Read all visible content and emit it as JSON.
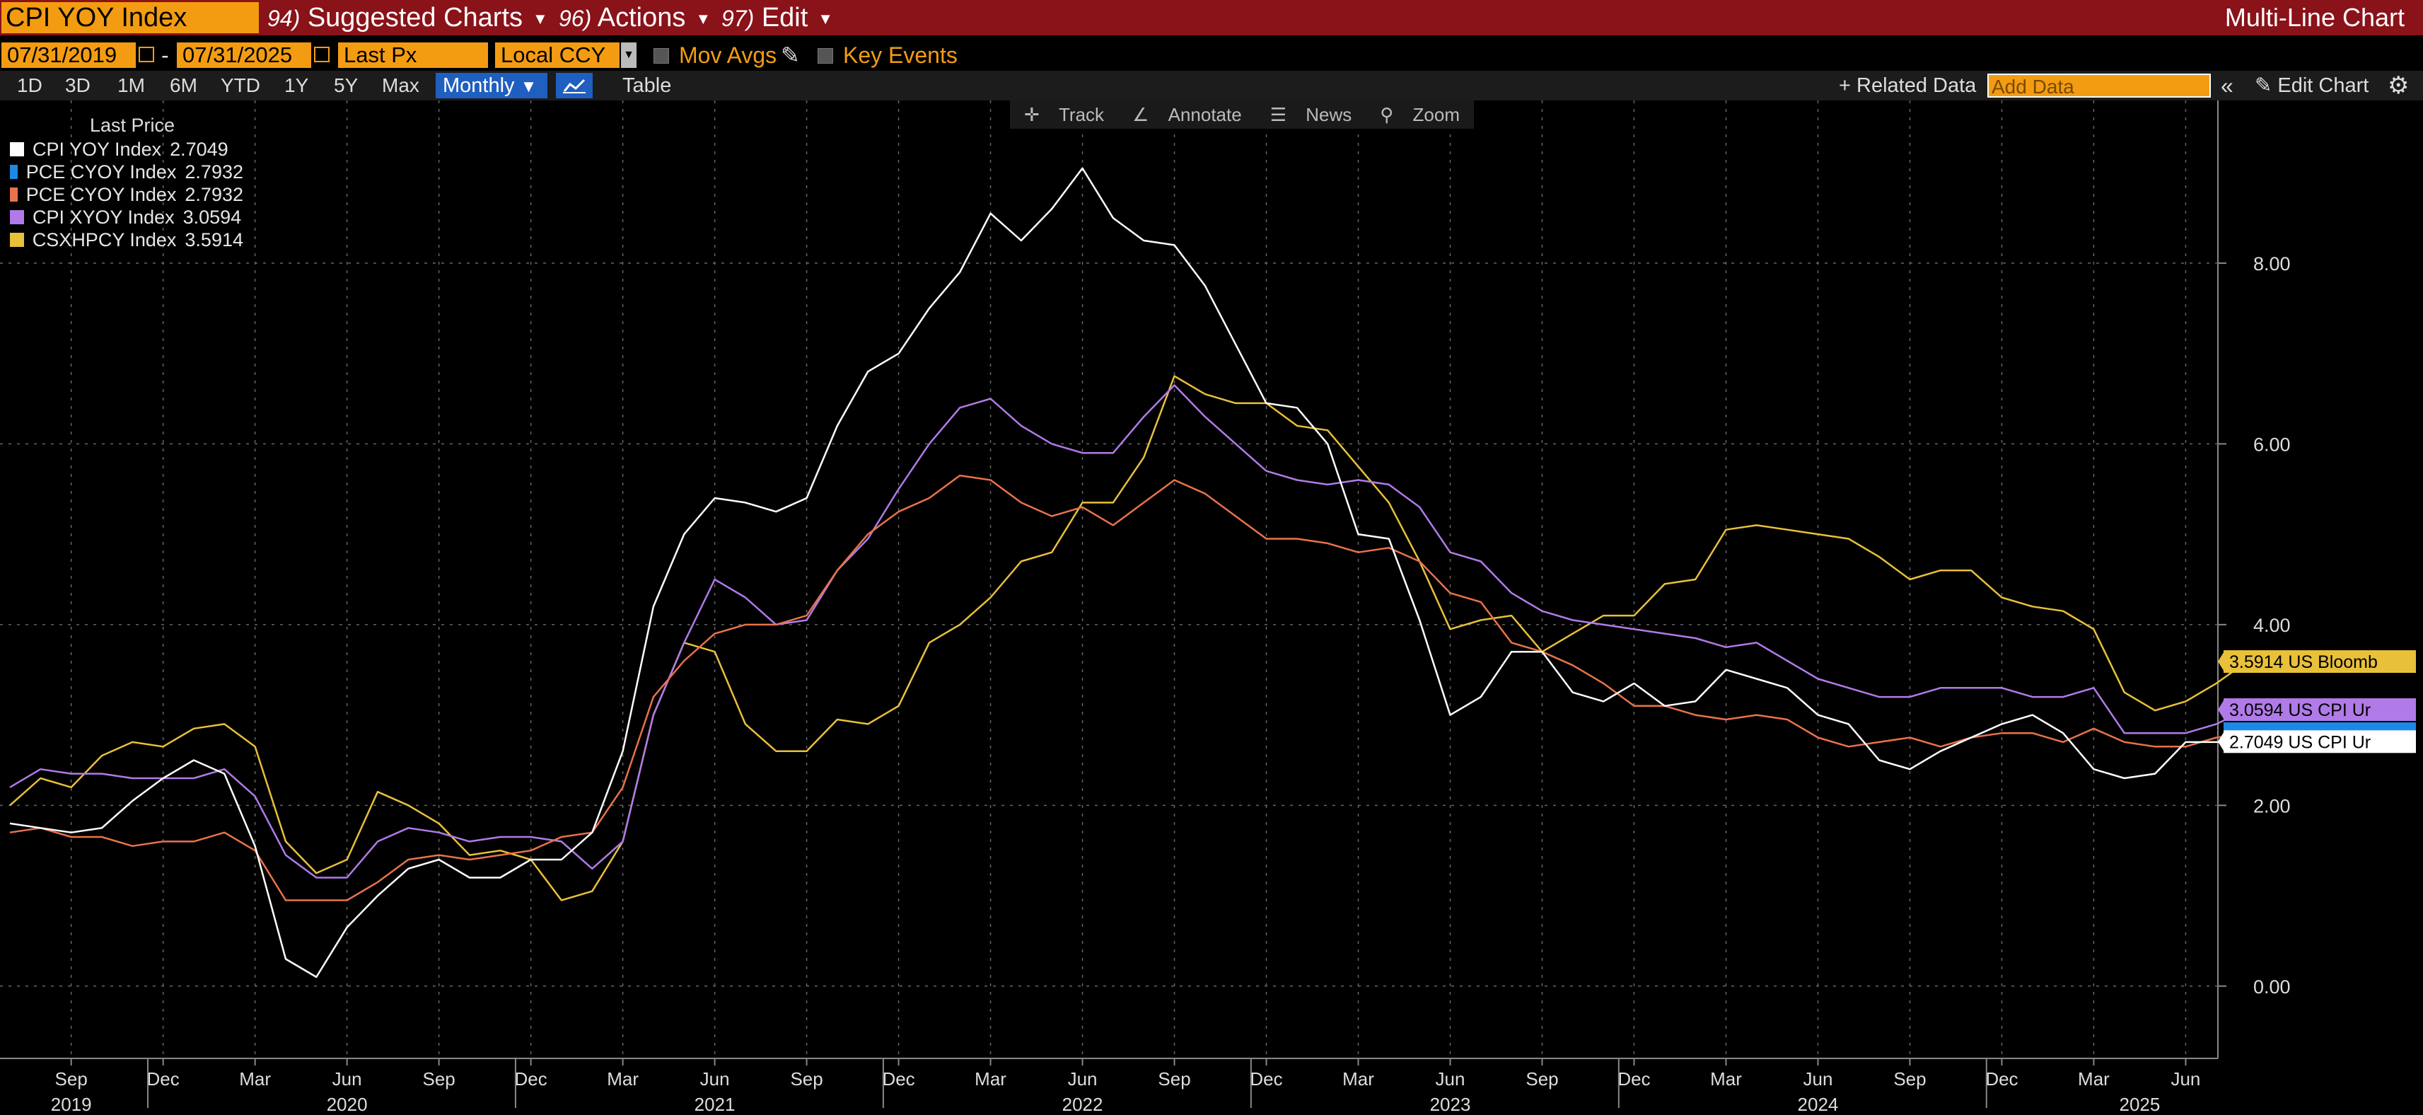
{
  "header": {
    "ticker": "CPI YOY Index",
    "menus": [
      {
        "num": "94)",
        "label": "Suggested Charts"
      },
      {
        "num": "96)",
        "label": "Actions"
      },
      {
        "num": "97)",
        "label": "Edit"
      }
    ],
    "chart_type": "Multi-Line Chart"
  },
  "toolbar": {
    "start_date": "07/31/2019",
    "date_separator": "-",
    "end_date": "07/31/2025",
    "price_field": "Last Px",
    "currency": "Local CCY",
    "mov_avgs": "Mov Avgs",
    "key_events": "Key Events"
  },
  "periods": [
    "1D",
    "3D",
    "1M",
    "6M",
    "YTD",
    "1Y",
    "5Y",
    "Max"
  ],
  "frequency": "Monthly",
  "table_tab": "Table",
  "related_data": "Related Data",
  "add_data_placeholder": "Add Data",
  "edit_chart": "Edit Chart",
  "chart_tools": [
    "Track",
    "Annotate",
    "News",
    "Zoom"
  ],
  "legend": {
    "header": "Last Price",
    "items": [
      {
        "name": "CPI YOY Index",
        "value": "2.7049",
        "color": "#ffffff"
      },
      {
        "name": "PCE CYOY Index",
        "value": "2.7932",
        "color": "#1e88e5"
      },
      {
        "name": "PCE CYOY Index",
        "value": "2.7932",
        "color": "#e8734a"
      },
      {
        "name": "CPI XYOY Index",
        "value": "3.0594",
        "color": "#b07be8"
      },
      {
        "name": "CSXHPCY Index",
        "value": "3.5914",
        "color": "#e8c03a"
      }
    ]
  },
  "chart_data": {
    "type": "line",
    "x_start": "2019-07",
    "x_end": "2025-07",
    "ylim": [
      -0.8,
      9.8
    ],
    "y_ticks": [
      "8.00",
      "6.00",
      "4.00",
      "2.00",
      "0.00"
    ],
    "x_month_ticks": [
      "Sep",
      "Dec",
      "Mar",
      "Jun",
      "Sep",
      "Dec",
      "Mar",
      "Jun",
      "Sep",
      "Dec",
      "Mar",
      "Jun",
      "Sep",
      "Dec",
      "Mar",
      "Jun",
      "Sep",
      "Dec",
      "Mar",
      "Jun",
      "Sep",
      "Dec",
      "Mar",
      "Jun"
    ],
    "x_year_labels": [
      "2019",
      "2020",
      "2021",
      "2022",
      "2023",
      "2024",
      "2025"
    ],
    "series": [
      {
        "name": "CSXHPCY Index",
        "color": "#e8c03a",
        "values": [
          2.0,
          2.3,
          2.2,
          2.55,
          2.7,
          2.65,
          2.85,
          2.9,
          2.65,
          1.6,
          1.25,
          1.4,
          2.15,
          2.0,
          1.8,
          1.45,
          1.5,
          1.4,
          0.95,
          1.05,
          1.6,
          3.0,
          3.8,
          3.7,
          2.9,
          2.6,
          2.6,
          2.95,
          2.9,
          3.1,
          3.8,
          4.0,
          4.3,
          4.7,
          4.8,
          5.35,
          5.35,
          5.85,
          6.75,
          6.55,
          6.45,
          6.45,
          6.2,
          6.15,
          5.75,
          5.35,
          4.7,
          3.95,
          4.05,
          4.1,
          3.7,
          3.9,
          4.1,
          4.1,
          4.45,
          4.5,
          5.05,
          5.1,
          5.05,
          5.0,
          4.95,
          4.75,
          4.5,
          4.6,
          4.6,
          4.3,
          4.2,
          4.15,
          3.95,
          3.25,
          3.05,
          3.15,
          3.35,
          3.59
        ]
      },
      {
        "name": "CPI XYOY Index",
        "color": "#b07be8",
        "values": [
          2.2,
          2.4,
          2.35,
          2.35,
          2.3,
          2.3,
          2.3,
          2.4,
          2.1,
          1.45,
          1.2,
          1.2,
          1.6,
          1.75,
          1.7,
          1.6,
          1.65,
          1.65,
          1.6,
          1.3,
          1.6,
          3.0,
          3.8,
          4.5,
          4.3,
          4.0,
          4.05,
          4.6,
          4.95,
          5.5,
          6.0,
          6.4,
          6.5,
          6.2,
          6.0,
          5.9,
          5.9,
          6.3,
          6.65,
          6.3,
          6.0,
          5.7,
          5.6,
          5.55,
          5.6,
          5.55,
          5.3,
          4.8,
          4.7,
          4.35,
          4.15,
          4.05,
          4.0,
          3.95,
          3.9,
          3.85,
          3.75,
          3.8,
          3.6,
          3.4,
          3.3,
          3.2,
          3.2,
          3.3,
          3.3,
          3.3,
          3.2,
          3.2,
          3.3,
          2.8,
          2.8,
          2.8,
          2.9,
          3.06
        ]
      },
      {
        "name": "PCE CYOY Index",
        "color": "#e8734a",
        "values": [
          1.7,
          1.75,
          1.65,
          1.65,
          1.55,
          1.6,
          1.6,
          1.7,
          1.5,
          0.95,
          0.95,
          0.95,
          1.15,
          1.4,
          1.45,
          1.4,
          1.45,
          1.5,
          1.65,
          1.7,
          2.2,
          3.2,
          3.6,
          3.9,
          4.0,
          4.0,
          4.1,
          4.6,
          5.0,
          5.25,
          5.4,
          5.65,
          5.6,
          5.35,
          5.2,
          5.3,
          5.1,
          5.35,
          5.6,
          5.45,
          5.2,
          4.95,
          4.95,
          4.9,
          4.8,
          4.85,
          4.7,
          4.35,
          4.25,
          3.8,
          3.7,
          3.55,
          3.35,
          3.1,
          3.1,
          3.0,
          2.95,
          3.0,
          2.95,
          2.75,
          2.65,
          2.7,
          2.75,
          2.65,
          2.75,
          2.8,
          2.8,
          2.7,
          2.85,
          2.7,
          2.65,
          2.65,
          2.75,
          2.79
        ]
      },
      {
        "name": "CPI YOY Index",
        "color": "#ffffff",
        "values": [
          1.8,
          1.75,
          1.7,
          1.75,
          2.05,
          2.3,
          2.5,
          2.35,
          1.55,
          0.3,
          0.1,
          0.65,
          1.0,
          1.3,
          1.4,
          1.2,
          1.2,
          1.4,
          1.4,
          1.7,
          2.6,
          4.2,
          5.0,
          5.4,
          5.35,
          5.25,
          5.4,
          6.2,
          6.8,
          7.0,
          7.5,
          7.9,
          8.55,
          8.25,
          8.6,
          9.05,
          8.5,
          8.25,
          8.2,
          7.75,
          7.1,
          6.45,
          6.4,
          6.0,
          5.0,
          4.95,
          4.05,
          3.0,
          3.2,
          3.7,
          3.7,
          3.25,
          3.15,
          3.35,
          3.1,
          3.15,
          3.5,
          3.4,
          3.3,
          3.0,
          2.9,
          2.5,
          2.4,
          2.6,
          2.75,
          2.9,
          3.0,
          2.8,
          2.4,
          2.3,
          2.35,
          2.7,
          2.7,
          2.7049
        ]
      },
      {
        "name": "PCE CYOY Index",
        "color": "#1e88e5",
        "values": [
          2.7932
        ]
      }
    ],
    "end_labels": [
      {
        "value": 3.5914,
        "text": "3.5914 US Bloomb",
        "bg": "#e8c03a",
        "fg": "#000000"
      },
      {
        "value": 3.0594,
        "text": "3.0594 US CPI Ur",
        "bg": "#b07be8",
        "fg": "#000000"
      },
      {
        "value": 2.7049,
        "text": "2.7049 US CPI Ur",
        "bg": "#ffffff",
        "fg": "#000000"
      }
    ]
  }
}
